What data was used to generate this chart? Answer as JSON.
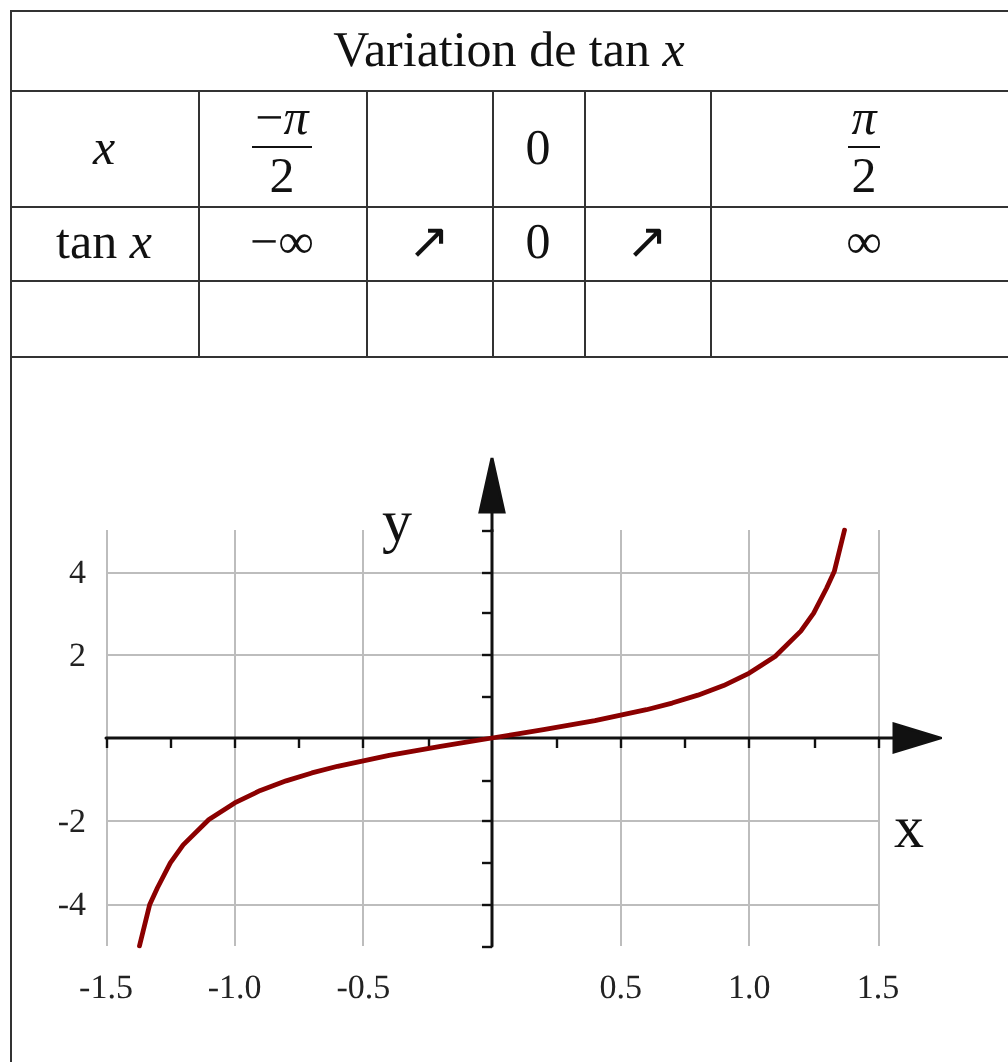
{
  "chart_data": [
    {
      "type": "other",
      "title": "Variation de tan x",
      "annotations": [
        "x",
        "−π",
        "2",
        "0",
        "π",
        "2",
        "tan x",
        "−∞",
        "↗",
        "0",
        "↗",
        "∞"
      ]
    },
    {
      "type": "line",
      "xlabel": "x",
      "ylabel": "y",
      "x": [
        -1.37,
        -1.33,
        -1.3,
        -1.25,
        -1.2,
        -1.1,
        -1.0,
        -0.9,
        -0.8,
        -0.7,
        -0.6,
        -0.5,
        -0.4,
        -0.3,
        -0.2,
        -0.1,
        0,
        0.1,
        0.2,
        0.3,
        0.4,
        0.5,
        0.6,
        0.7,
        0.8,
        0.9,
        1.0,
        1.1,
        1.2,
        1.25,
        1.3,
        1.33,
        1.37
      ],
      "series": [
        {
          "color": "#8b0000",
          "values": [
            -5.0,
            -4.0,
            -3.6,
            -3.0,
            -2.57,
            -1.96,
            -1.56,
            -1.26,
            -1.03,
            -0.84,
            -0.68,
            -0.55,
            -0.42,
            -0.31,
            -0.2,
            -0.1,
            0,
            0.1,
            0.2,
            0.31,
            0.42,
            0.55,
            0.68,
            0.84,
            1.03,
            1.26,
            1.56,
            1.96,
            2.57,
            3.0,
            3.6,
            4.0,
            5.0
          ]
        }
      ],
      "xlim": [
        -1.5,
        1.5
      ],
      "ylim": [
        -5,
        5
      ],
      "xticks": [
        -1.5,
        {
          "value": -1.25,
          "label": null
        },
        {
          "value": -1,
          "label": "-1.0"
        },
        {
          "value": -0.75,
          "label": null
        },
        -0.5,
        {
          "value": -0.25,
          "label": null
        },
        {
          "value": 0.25,
          "label": null
        },
        0.5,
        {
          "value": 0.75,
          "label": null
        },
        {
          "value": 1,
          "label": "1.0"
        },
        {
          "value": 1.25,
          "label": null
        },
        1.5
      ],
      "yticks": [
        {
          "value": -5,
          "label": null
        },
        -4,
        {
          "value": -3,
          "label": null
        },
        -2,
        {
          "value": -1,
          "label": null
        },
        {
          "value": 1,
          "label": null
        },
        2,
        {
          "value": 3,
          "label": null
        },
        4,
        {
          "value": 5,
          "label": null
        }
      ],
      "grid": true,
      "marker": "none",
      "line_style": "solid"
    }
  ]
}
